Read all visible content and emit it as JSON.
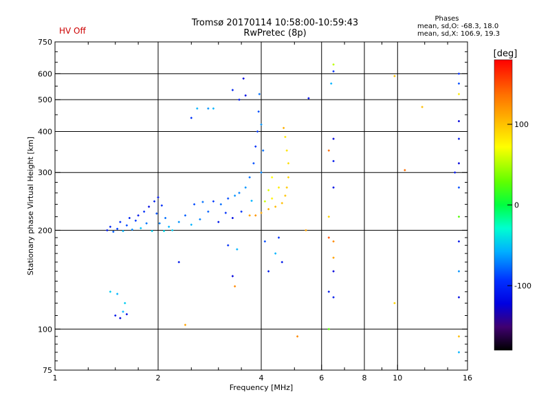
{
  "header": {
    "title_line1": "Tromsø 20170114 10:58:00-10:59:43",
    "title_line2": "RwPretec (8p)",
    "hv_status": "HV Off"
  },
  "phase_box": {
    "heading": "Phases",
    "line_o": "mean, sd,O: -68.3, 18.0",
    "line_x": "mean, sd,X: 106.9, 19.3"
  },
  "colorbar": {
    "unit_label": "[deg]",
    "ticks": [
      "100",
      "0",
      "-100"
    ],
    "colors": [
      "#ff0000",
      "#ff8000",
      "#ffd000",
      "#ffff00",
      "#60ff00",
      "#00ff00",
      "#00ffc0",
      "#00e0ff",
      "#0080ff",
      "#0000ff",
      "#4000a0",
      "#000000"
    ]
  },
  "chart_data": {
    "type": "scatter",
    "xlabel": "Frequency [MHz]",
    "ylabel": "Stationary phase Virtual Height [km]",
    "x_scale": "log",
    "y_scale": "log",
    "xlim": [
      1,
      16
    ],
    "ylim": [
      75,
      750
    ],
    "x_ticks": [
      "1",
      "2",
      "4",
      "6",
      "8",
      "10",
      "16"
    ],
    "y_ticks": [
      "75",
      "100",
      "200",
      "300",
      "400",
      "500",
      "600",
      "750"
    ],
    "grid": true,
    "points": [
      {
        "f": 1.42,
        "h": 200,
        "p": -110
      },
      {
        "f": 1.45,
        "h": 205,
        "p": -105
      },
      {
        "f": 1.48,
        "h": 198,
        "p": -85
      },
      {
        "f": 1.52,
        "h": 202,
        "p": -95
      },
      {
        "f": 1.55,
        "h": 212,
        "p": -100
      },
      {
        "f": 1.58,
        "h": 199,
        "p": -60
      },
      {
        "f": 1.62,
        "h": 207,
        "p": -90
      },
      {
        "f": 1.65,
        "h": 218,
        "p": -105
      },
      {
        "f": 1.68,
        "h": 201,
        "p": -70
      },
      {
        "f": 1.72,
        "h": 214,
        "p": -95
      },
      {
        "f": 1.75,
        "h": 222,
        "p": -110
      },
      {
        "f": 1.78,
        "h": 203,
        "p": -55
      },
      {
        "f": 1.82,
        "h": 228,
        "p": -100
      },
      {
        "f": 1.85,
        "h": 210,
        "p": -80
      },
      {
        "f": 1.88,
        "h": 236,
        "p": -115
      },
      {
        "f": 1.92,
        "h": 199,
        "p": -50
      },
      {
        "f": 1.95,
        "h": 245,
        "p": -105
      },
      {
        "f": 1.98,
        "h": 225,
        "p": -90
      },
      {
        "f": 2.0,
        "h": 252,
        "p": -110
      },
      {
        "f": 2.02,
        "h": 210,
        "p": -75
      },
      {
        "f": 2.05,
        "h": 238,
        "p": -100
      },
      {
        "f": 2.08,
        "h": 199,
        "p": -45
      },
      {
        "f": 2.1,
        "h": 218,
        "p": -80
      },
      {
        "f": 2.15,
        "h": 205,
        "p": -60
      },
      {
        "f": 2.2,
        "h": 200,
        "p": -50
      },
      {
        "f": 2.3,
        "h": 212,
        "p": -70
      },
      {
        "f": 2.4,
        "h": 222,
        "p": -85
      },
      {
        "f": 2.5,
        "h": 208,
        "p": -60
      },
      {
        "f": 2.55,
        "h": 240,
        "p": -90
      },
      {
        "f": 2.65,
        "h": 216,
        "p": -75
      },
      {
        "f": 2.7,
        "h": 244,
        "p": -80
      },
      {
        "f": 2.8,
        "h": 228,
        "p": -85
      },
      {
        "f": 2.9,
        "h": 245,
        "p": -95
      },
      {
        "f": 3.0,
        "h": 212,
        "p": -110
      },
      {
        "f": 3.05,
        "h": 240,
        "p": -80
      },
      {
        "f": 3.15,
        "h": 226,
        "p": -100
      },
      {
        "f": 3.2,
        "h": 250,
        "p": -90
      },
      {
        "f": 3.3,
        "h": 218,
        "p": -115
      },
      {
        "f": 3.35,
        "h": 255,
        "p": -70
      },
      {
        "f": 3.45,
        "h": 260,
        "p": -75
      },
      {
        "f": 3.5,
        "h": 228,
        "p": -100
      },
      {
        "f": 3.6,
        "h": 270,
        "p": -70
      },
      {
        "f": 3.7,
        "h": 290,
        "p": -80
      },
      {
        "f": 3.75,
        "h": 246,
        "p": -60
      },
      {
        "f": 3.8,
        "h": 320,
        "p": -90
      },
      {
        "f": 3.85,
        "h": 360,
        "p": -100
      },
      {
        "f": 3.9,
        "h": 400,
        "p": -95
      },
      {
        "f": 3.93,
        "h": 460,
        "p": -90
      },
      {
        "f": 3.95,
        "h": 520,
        "p": -80
      },
      {
        "f": 3.6,
        "h": 515,
        "p": -115
      },
      {
        "f": 3.45,
        "h": 500,
        "p": -110
      },
      {
        "f": 3.3,
        "h": 535,
        "p": -105
      },
      {
        "f": 3.55,
        "h": 580,
        "p": -120
      },
      {
        "f": 4.0,
        "h": 420,
        "p": -70
      },
      {
        "f": 4.05,
        "h": 350,
        "p": -80
      },
      {
        "f": 4.0,
        "h": 300,
        "p": -75
      },
      {
        "f": 3.7,
        "h": 222,
        "p": 120
      },
      {
        "f": 3.85,
        "h": 222,
        "p": 125
      },
      {
        "f": 4.0,
        "h": 226,
        "p": 118
      },
      {
        "f": 4.2,
        "h": 232,
        "p": 115
      },
      {
        "f": 4.4,
        "h": 236,
        "p": 112
      },
      {
        "f": 4.6,
        "h": 242,
        "p": 110
      },
      {
        "f": 4.7,
        "h": 255,
        "p": 108
      },
      {
        "f": 4.75,
        "h": 270,
        "p": 105
      },
      {
        "f": 4.8,
        "h": 290,
        "p": 100
      },
      {
        "f": 4.8,
        "h": 320,
        "p": 95
      },
      {
        "f": 4.75,
        "h": 350,
        "p": 92
      },
      {
        "f": 4.7,
        "h": 385,
        "p": 90
      },
      {
        "f": 4.65,
        "h": 410,
        "p": 115
      },
      {
        "f": 4.3,
        "h": 250,
        "p": 85
      },
      {
        "f": 4.5,
        "h": 270,
        "p": 88
      },
      {
        "f": 4.2,
        "h": 265,
        "p": 70
      },
      {
        "f": 4.1,
        "h": 245,
        "p": 65
      },
      {
        "f": 4.3,
        "h": 290,
        "p": 80
      },
      {
        "f": 1.5,
        "h": 110,
        "p": -110
      },
      {
        "f": 1.55,
        "h": 108,
        "p": -120
      },
      {
        "f": 1.58,
        "h": 113,
        "p": -60
      },
      {
        "f": 1.62,
        "h": 111,
        "p": -115
      },
      {
        "f": 1.52,
        "h": 128,
        "p": -60
      },
      {
        "f": 1.6,
        "h": 120,
        "p": -50
      },
      {
        "f": 1.45,
        "h": 130,
        "p": -50
      },
      {
        "f": 2.6,
        "h": 470,
        "p": -60
      },
      {
        "f": 2.8,
        "h": 470,
        "p": -70
      },
      {
        "f": 2.9,
        "h": 470,
        "p": -60
      },
      {
        "f": 2.5,
        "h": 440,
        "p": -100
      },
      {
        "f": 2.3,
        "h": 160,
        "p": -110
      },
      {
        "f": 3.2,
        "h": 180,
        "p": -100
      },
      {
        "f": 3.4,
        "h": 175,
        "p": -60
      },
      {
        "f": 3.35,
        "h": 135,
        "p": 130
      },
      {
        "f": 3.3,
        "h": 145,
        "p": -120
      },
      {
        "f": 4.2,
        "h": 150,
        "p": -110
      },
      {
        "f": 4.4,
        "h": 170,
        "p": -60
      },
      {
        "f": 4.6,
        "h": 160,
        "p": -110
      },
      {
        "f": 4.5,
        "h": 190,
        "p": -100
      },
      {
        "f": 4.1,
        "h": 185,
        "p": -90
      },
      {
        "f": 5.5,
        "h": 505,
        "p": -115
      },
      {
        "f": 5.4,
        "h": 200,
        "p": 120
      },
      {
        "f": 5.1,
        "h": 95,
        "p": 130
      },
      {
        "f": 2.4,
        "h": 103,
        "p": 120
      },
      {
        "f": 6.3,
        "h": 220,
        "p": 100
      },
      {
        "f": 6.3,
        "h": 190,
        "p": 150
      },
      {
        "f": 6.3,
        "h": 130,
        "p": -110
      },
      {
        "f": 6.3,
        "h": 100,
        "p": 30
      },
      {
        "f": 6.3,
        "h": 350,
        "p": 140
      },
      {
        "f": 6.5,
        "h": 610,
        "p": -100
      },
      {
        "f": 6.5,
        "h": 640,
        "p": 60
      },
      {
        "f": 6.4,
        "h": 560,
        "p": -60
      },
      {
        "f": 6.5,
        "h": 380,
        "p": -120
      },
      {
        "f": 6.5,
        "h": 325,
        "p": -110
      },
      {
        "f": 6.5,
        "h": 270,
        "p": -115
      },
      {
        "f": 6.5,
        "h": 185,
        "p": 130
      },
      {
        "f": 6.5,
        "h": 165,
        "p": 120
      },
      {
        "f": 6.5,
        "h": 125,
        "p": -110
      },
      {
        "f": 6.5,
        "h": 150,
        "p": -120
      },
      {
        "f": 9.8,
        "h": 590,
        "p": 110
      },
      {
        "f": 9.8,
        "h": 120,
        "p": 100
      },
      {
        "f": 10.5,
        "h": 305,
        "p": 140
      },
      {
        "f": 11.8,
        "h": 475,
        "p": 110
      },
      {
        "f": 15.1,
        "h": 600,
        "p": -100
      },
      {
        "f": 15.1,
        "h": 520,
        "p": 90
      },
      {
        "f": 15.1,
        "h": 430,
        "p": -120
      },
      {
        "f": 15.1,
        "h": 380,
        "p": -110
      },
      {
        "f": 15.1,
        "h": 320,
        "p": -120
      },
      {
        "f": 15.1,
        "h": 270,
        "p": -90
      },
      {
        "f": 15.1,
        "h": 220,
        "p": 30
      },
      {
        "f": 15.1,
        "h": 185,
        "p": -110
      },
      {
        "f": 15.1,
        "h": 150,
        "p": -70
      },
      {
        "f": 15.1,
        "h": 125,
        "p": -115
      },
      {
        "f": 15.1,
        "h": 95,
        "p": 110
      },
      {
        "f": 15.1,
        "h": 85,
        "p": -60
      },
      {
        "f": 14.7,
        "h": 300,
        "p": -110
      },
      {
        "f": 15.1,
        "h": 560,
        "p": -90
      }
    ]
  }
}
